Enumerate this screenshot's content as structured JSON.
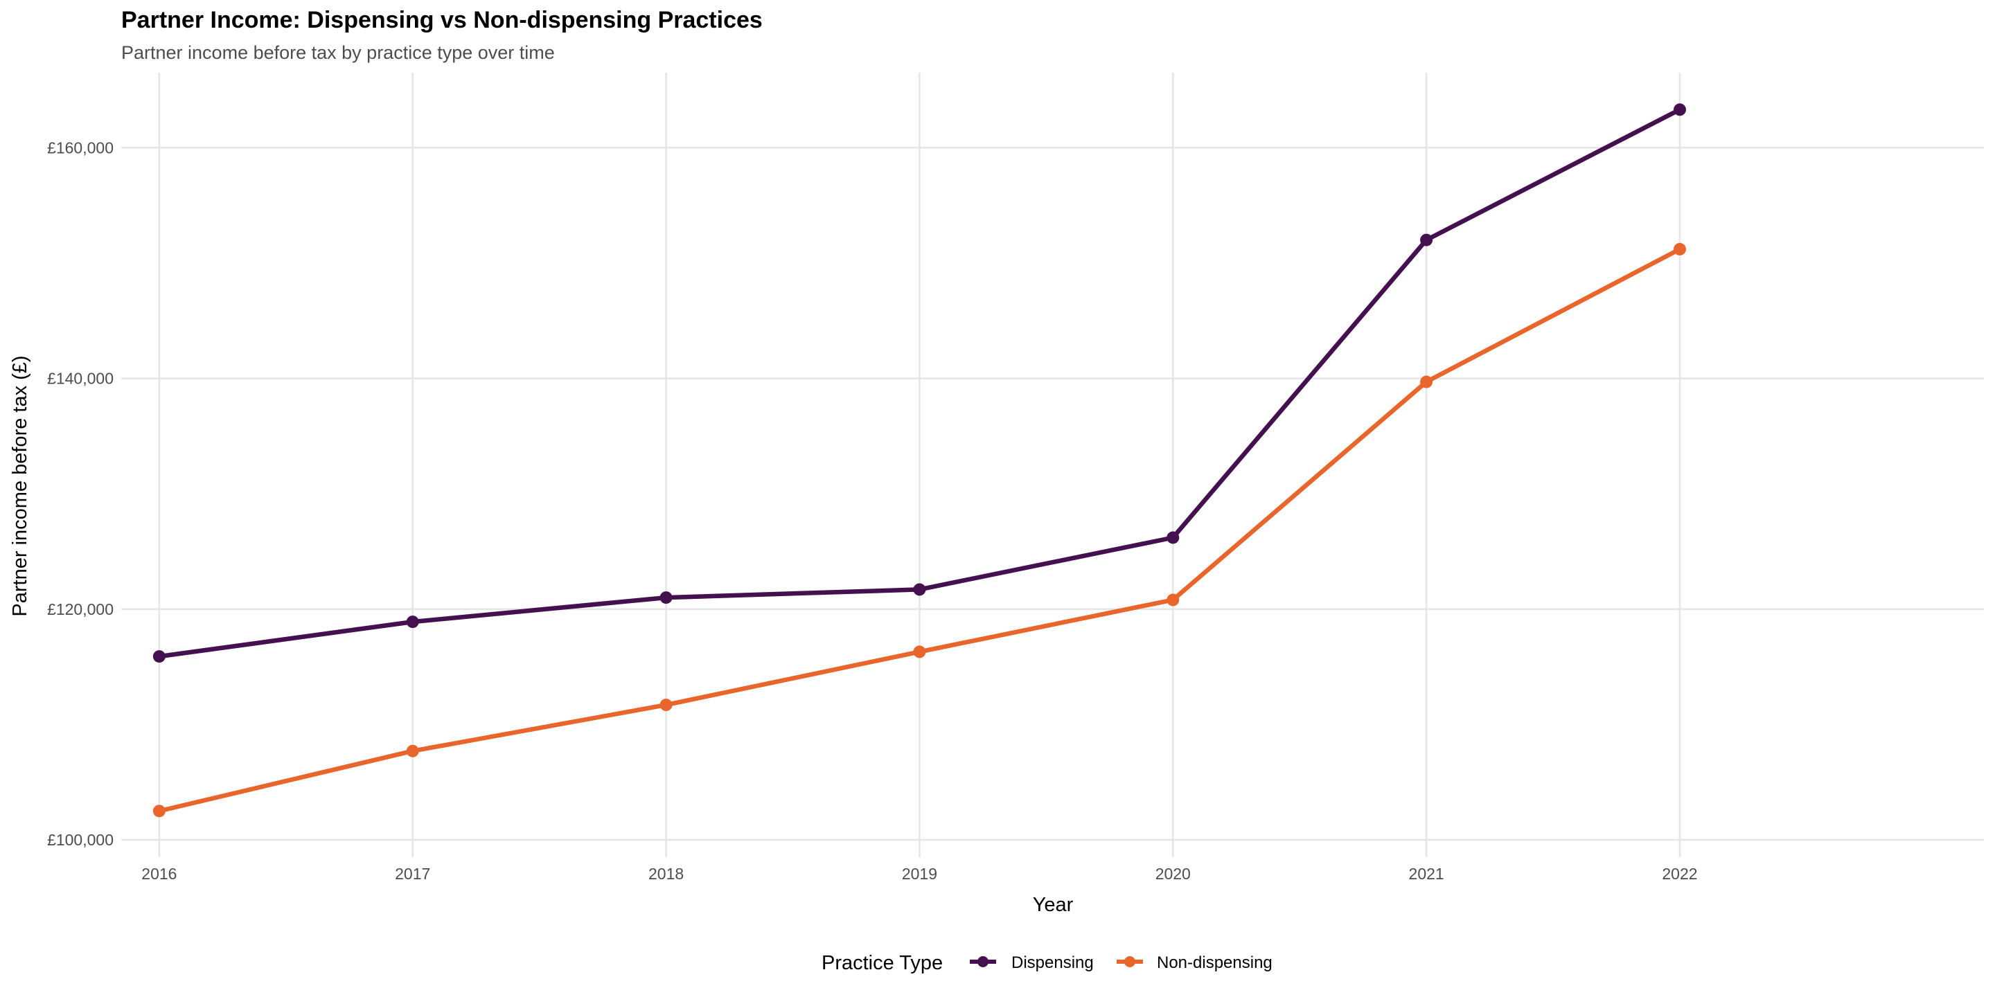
{
  "chart_data": {
    "type": "line",
    "title": "Partner Income: Dispensing vs Non-dispensing Practices",
    "subtitle": "Partner income before tax by practice type over time",
    "xlabel": "Year",
    "ylabel": "Partner income before tax (£)",
    "x": [
      2016,
      2017,
      2018,
      2019,
      2020,
      2021,
      2022
    ],
    "xlim": [
      2015.85,
      2023.2
    ],
    "ylim": [
      98500,
      166500
    ],
    "yticks": [
      100000,
      120000,
      140000,
      160000
    ],
    "ytick_labels": [
      "£100,000",
      "£120,000",
      "£140,000",
      "£160,000"
    ],
    "xtick_labels": [
      "2016",
      "2017",
      "2018",
      "2019",
      "2020",
      "2021",
      "2022"
    ],
    "grid": true,
    "legend": {
      "title": "Practice Type",
      "position": "bottom"
    },
    "series": [
      {
        "name": "Dispensing",
        "color": "#45104f",
        "values": [
          115900,
          118900,
          121000,
          121700,
          126200,
          152000,
          163300
        ]
      },
      {
        "name": "Non-dispensing",
        "color": "#e8662c",
        "values": [
          102500,
          107700,
          111700,
          116300,
          120800,
          139700,
          151200
        ]
      }
    ]
  }
}
